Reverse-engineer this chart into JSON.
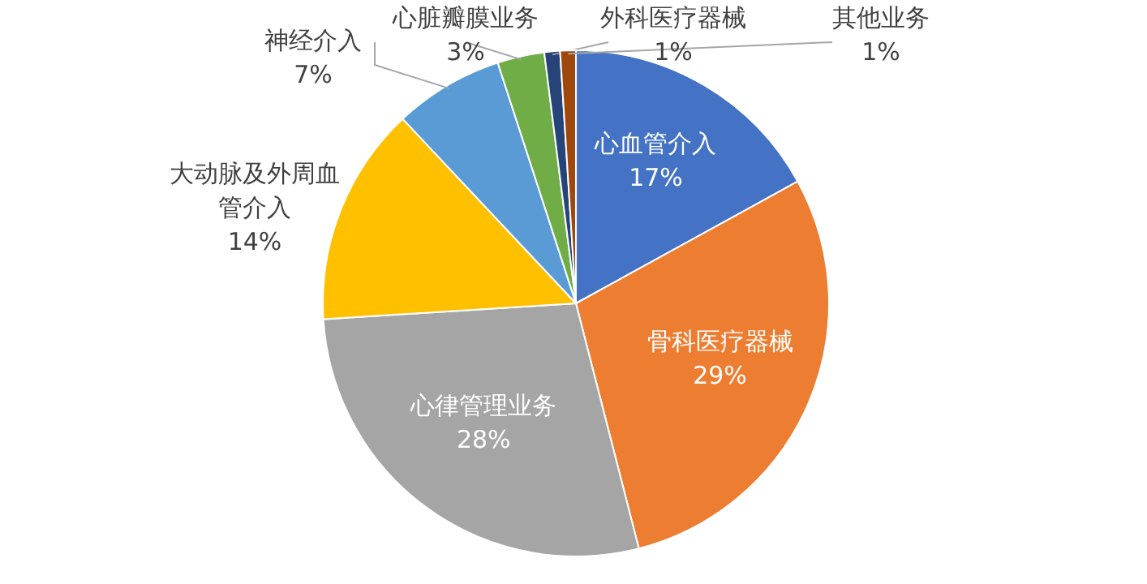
{
  "chart_data": {
    "type": "pie",
    "categories": [
      "心血管介入",
      "骨科医疗器械",
      "心律管理业务",
      "大动脉及外周血管介入",
      "神经介入",
      "心脏瓣膜业务",
      "外科医疗器械",
      "其他业务"
    ],
    "values": [
      17,
      29,
      28,
      14,
      7,
      3,
      1,
      1
    ],
    "value_labels": [
      "17%",
      "29%",
      "28%",
      "14%",
      "7%",
      "3%",
      "1%",
      "1%"
    ],
    "colors": [
      "#4472c4",
      "#ed7d31",
      "#a5a5a5",
      "#ffc000",
      "#5b9bd5",
      "#70ad47",
      "#264478",
      "#9e480e"
    ],
    "legend": false
  }
}
